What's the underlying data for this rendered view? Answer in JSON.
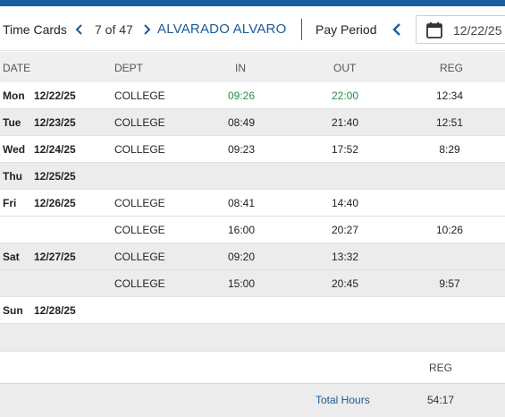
{
  "header": {
    "title": "Time Cards",
    "record_position": "7 of 47",
    "employee_name": "ALVARADO ALVARO",
    "pay_period_label": "Pay Period",
    "pay_period_date": "12/22/25"
  },
  "columns": {
    "date": "DATE",
    "dept": "DEPT",
    "in": "IN",
    "out": "OUT",
    "reg": "REG"
  },
  "rows": [
    {
      "day": "Mon",
      "date": "12/22/25",
      "dept": "COLLEGE",
      "in": "09:26",
      "out": "22:00",
      "reg": "12:34"
    },
    {
      "day": "Tue",
      "date": "12/23/25",
      "dept": "COLLEGE",
      "in": "08:49",
      "out": "21:40",
      "reg": "12:51"
    },
    {
      "day": "Wed",
      "date": "12/24/25",
      "dept": "COLLEGE",
      "in": "09:23",
      "out": "17:52",
      "reg": "8:29"
    },
    {
      "day": "Thu",
      "date": "12/25/25",
      "dept": "",
      "in": "",
      "out": "",
      "reg": ""
    },
    {
      "day": "Fri",
      "date": "12/26/25",
      "dept": "COLLEGE",
      "in": "08:41",
      "out": "14:40",
      "reg": ""
    },
    {
      "day": "",
      "date": "",
      "dept": "COLLEGE",
      "in": "16:00",
      "out": "20:27",
      "reg": "10:26"
    },
    {
      "day": "Sat",
      "date": "12/27/25",
      "dept": "COLLEGE",
      "in": "09:20",
      "out": "13:32",
      "reg": ""
    },
    {
      "day": "",
      "date": "",
      "dept": "COLLEGE",
      "in": "15:00",
      "out": "20:45",
      "reg": "9:57"
    },
    {
      "day": "Sun",
      "date": "12/28/25",
      "dept": "",
      "in": "",
      "out": "",
      "reg": ""
    },
    {
      "day": "",
      "date": "",
      "dept": "",
      "in": "",
      "out": "",
      "reg": ""
    }
  ],
  "totals": {
    "reg_label": "REG",
    "total_label": "Total Hours",
    "total_value": "54:17"
  },
  "colors": {
    "brand": "#1a5f9e",
    "link": "#1b5a96",
    "highlight_time": "#2e8b4e"
  },
  "icons": {
    "prev": "chevron-left-icon",
    "next": "chevron-right-icon",
    "calendar": "calendar-icon"
  }
}
